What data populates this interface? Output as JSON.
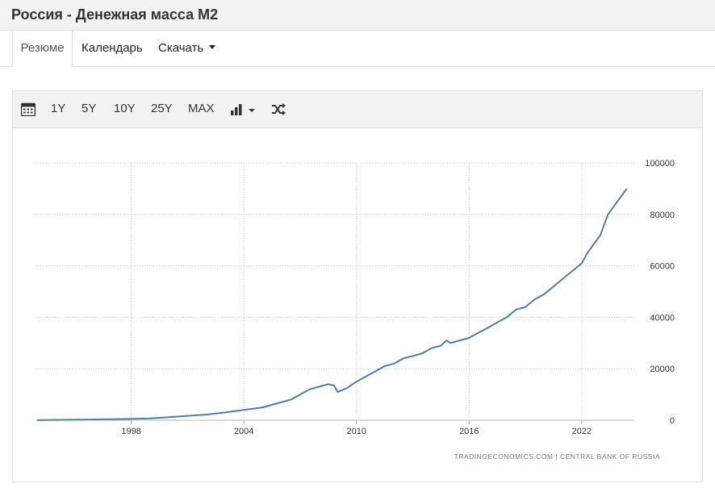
{
  "page": {
    "title": "Россия - Денежная масса M2"
  },
  "tabs": [
    {
      "label": "Резюме"
    },
    {
      "label": "Календарь"
    },
    {
      "label": "Скачать"
    }
  ],
  "toolbar": {
    "calendar_icon": "calendar-icon",
    "ranges": [
      "1Y",
      "5Y",
      "10Y",
      "25Y",
      "MAX"
    ],
    "chart_type_icon": "bar-chart-icon",
    "compare_icon": "shuffle-icon"
  },
  "chart_data": {
    "type": "line",
    "title": "",
    "xlabel": "",
    "ylabel": "",
    "x_ticks": [
      "1998",
      "2004",
      "2010",
      "2016",
      "2022"
    ],
    "y_ticks": [
      "0",
      "20000",
      "40000",
      "60000",
      "80000",
      "100000"
    ],
    "xlim": [
      1992.9,
      2024.8
    ],
    "ylim": [
      0,
      100000
    ],
    "grid": true,
    "line_color": "#4d7fa3",
    "source": "TRADINGECONOMICS.COM  |  CENTRAL BANK OF RUSSIA",
    "series": [
      {
        "x": [
          1993.0,
          1995.0,
          1997.0,
          1998.0,
          1999.0,
          2000.0,
          2001.0,
          2002.0,
          2003.0,
          2004.0,
          2005.0,
          2005.5,
          2006.0,
          2006.5,
          2007.0,
          2007.5,
          2008.0,
          2008.5,
          2008.8,
          2009.0,
          2009.5,
          2010.0,
          2010.5,
          2011.0,
          2011.5,
          2012.0,
          2012.5,
          2013.0,
          2013.5,
          2014.0,
          2014.5,
          2014.8,
          2015.0,
          2015.5,
          2016.0,
          2016.5,
          2017.0,
          2017.5,
          2018.0,
          2018.5,
          2019.0,
          2019.5,
          2020.0,
          2020.5,
          2021.0,
          2021.5,
          2022.0,
          2022.3,
          2022.6,
          2023.0,
          2023.4,
          2023.8,
          2024.0,
          2024.4
        ],
        "y": [
          20,
          200,
          400,
          500,
          700,
          1200,
          1700,
          2200,
          3000,
          4000,
          5000,
          6000,
          7000,
          8000,
          10000,
          12000,
          13000,
          14000,
          13500,
          11000,
          12500,
          15000,
          17000,
          19000,
          21000,
          22000,
          24000,
          25000,
          26000,
          28000,
          29000,
          31000,
          30000,
          31000,
          32000,
          34000,
          36000,
          38000,
          40000,
          43000,
          44000,
          47000,
          49000,
          52000,
          55000,
          58000,
          61000,
          65000,
          68000,
          72000,
          80000,
          84000,
          86000,
          90000
        ]
      }
    ]
  }
}
